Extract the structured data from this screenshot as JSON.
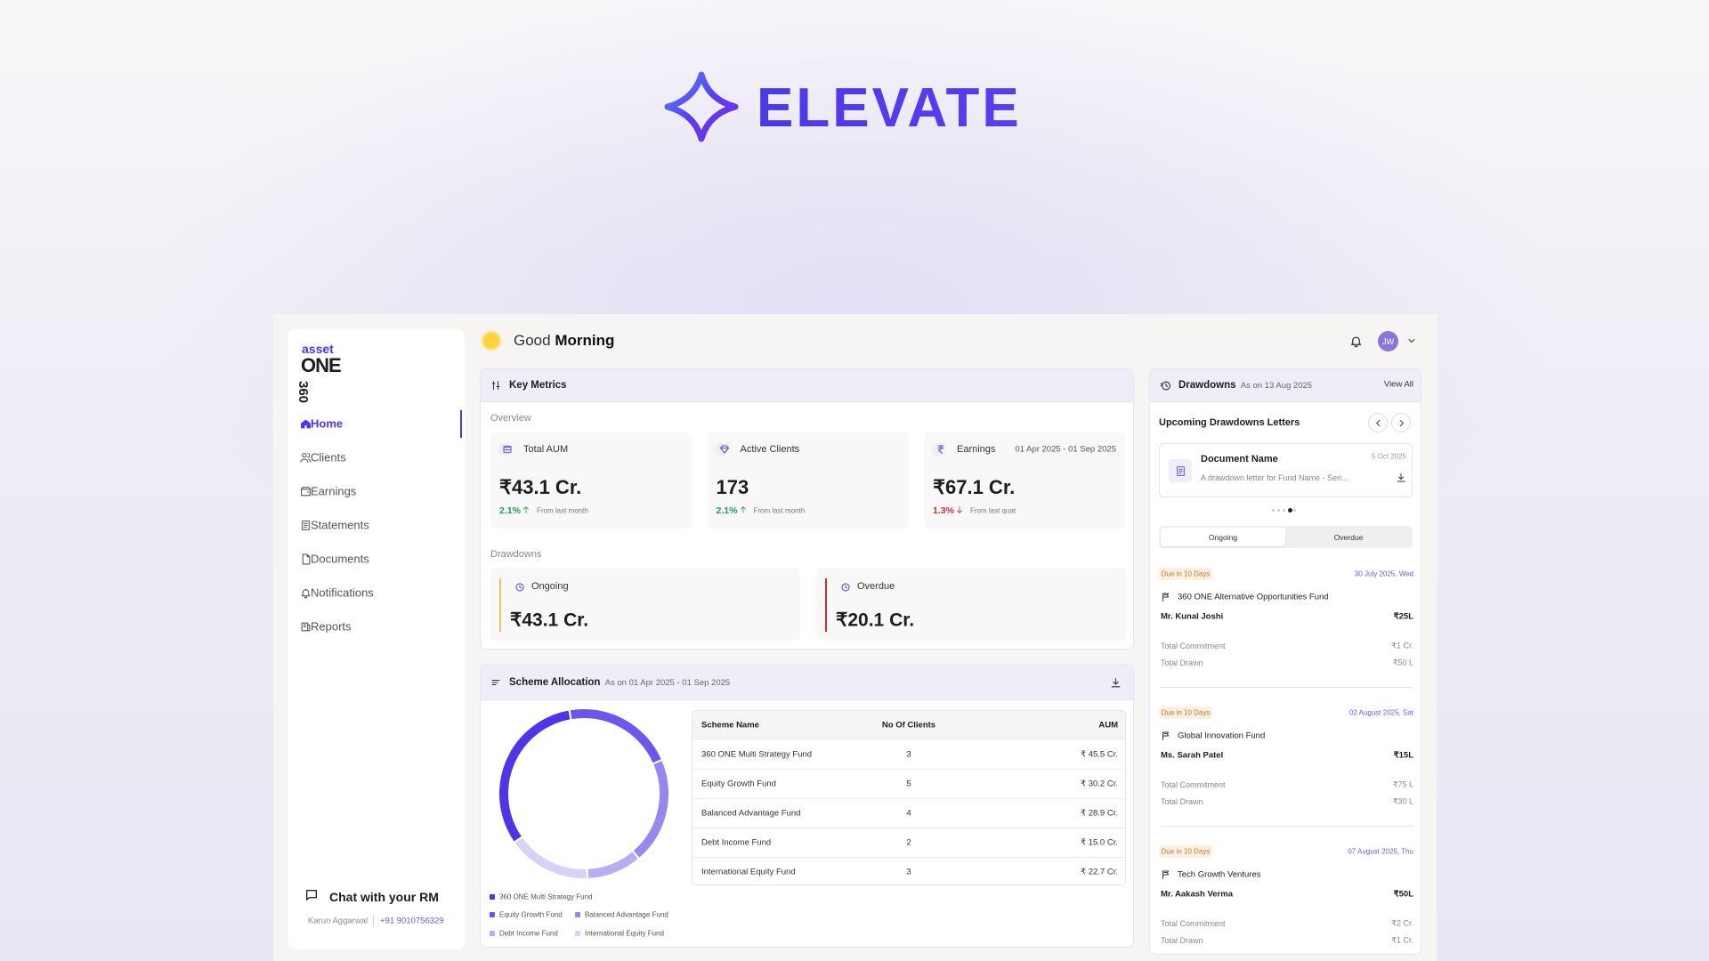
{
  "brand": {
    "name": "ELEVATE"
  },
  "sidebar": {
    "logo": {
      "top": "asset",
      "middle": "ONE",
      "side": "360"
    },
    "nav": [
      "Home",
      "Clients",
      "Earnings",
      "Statements",
      "Documents",
      "Notifications",
      "Reports"
    ],
    "chat": {
      "title": "Chat with your RM",
      "rm_name": "Karun Aggarwal",
      "phone": "+91 9010756329"
    }
  },
  "header": {
    "greeting": "Good",
    "greeting_bold": "Morning",
    "avatar": "JW"
  },
  "key_metrics": {
    "title": "Key Metrics",
    "overview_label": "Overview",
    "metrics": [
      {
        "label": "Total AUM",
        "value": "₹43.1 Cr.",
        "change": "2.1%",
        "trend": "up",
        "note": "From last month"
      },
      {
        "label": "Active Clients",
        "value": "173",
        "change": "2.1%",
        "trend": "up",
        "note": "From last month"
      },
      {
        "label": "Earnings",
        "period": "01 Apr 2025 - 01 Sep 2025",
        "value": "₹67.1 Cr.",
        "change": "1.3%",
        "trend": "down",
        "note": "From last quat"
      }
    ],
    "drawdowns_label": "Drawdowns",
    "drawdowns": [
      {
        "label": "Ongoing",
        "value": "₹43.1 Cr.",
        "color": "#e9c25a"
      },
      {
        "label": "Overdue",
        "value": "₹20.1 Cr.",
        "color": "#c62f34"
      }
    ]
  },
  "scheme_allocation": {
    "title": "Scheme Allocation",
    "subtitle": "As on 01 Apr 2025 - 01 Sep 2025",
    "columns": [
      "Scheme Name",
      "No Of Clients",
      "AUM"
    ],
    "rows": [
      {
        "name": "360 ONE Multi Strategy Fund",
        "clients": 3,
        "aum": {
          "value": 45.5,
          "label": "₹ 45.5 Cr."
        },
        "color": "#5233e6"
      },
      {
        "name": "Equity Growth Fund",
        "clients": 5,
        "aum": {
          "value": 30.2,
          "label": "₹ 30.2 Cr."
        },
        "color": "#6f55ee"
      },
      {
        "name": "Balanced Advantage Fund",
        "clients": 4,
        "aum": {
          "value": 28.9,
          "label": "₹ 28.9 Cr."
        },
        "color": "#9a86ef"
      },
      {
        "name": "Debt Income Fund",
        "clients": 2,
        "aum": {
          "value": 15.0,
          "label": "₹ 15.0 Cr."
        },
        "color": "#b9acf2"
      },
      {
        "name": "International Equity Fund",
        "clients": 3,
        "aum": {
          "value": 22.7,
          "label": "₹ 22.7 Cr."
        },
        "color": "#d9d2f7"
      }
    ]
  },
  "drawdowns_panel": {
    "title": "Drawdowns",
    "as_on": "As on 13 Aug 2025",
    "view_all": "View All",
    "upcoming_title": "Upcoming Drawdowns Letters",
    "document": {
      "name": "Document Name",
      "date": "5 Oct 2025",
      "description": "A drawdown letter for Fund Name - Seri..."
    },
    "tabs": [
      "Ongoing",
      "Overdue"
    ],
    "labels": {
      "commitment": "Total Commitment",
      "drawn": "Total Drawn"
    },
    "items": [
      {
        "due": "Due in 10 Days",
        "date": "30 July 2025, Wed",
        "fund": "360 ONE Alternative Opportunities Fund",
        "client": "Mr. Kunal Joshi",
        "amount": "₹25L",
        "commitment": "₹1 Cr.",
        "drawn": "₹50 L"
      },
      {
        "due": "Due in 10 Days",
        "date": "02 August 2025, Sat",
        "fund": "Global Innovation Fund",
        "client": "Ms. Sarah Patel",
        "amount": "₹15L",
        "commitment": "₹75 L",
        "drawn": "₹30 L"
      },
      {
        "due": "Due in 10 Days",
        "date": "07 August 2025, Thu",
        "fund": "Tech Growth Ventures",
        "client": "Mr. Aakash Verma",
        "amount": "₹50L",
        "commitment": "₹2 Cr.",
        "drawn": "₹1 Cr."
      }
    ]
  }
}
